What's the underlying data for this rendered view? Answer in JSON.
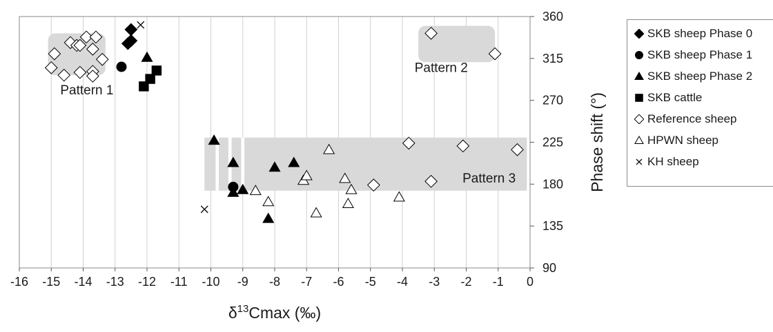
{
  "chart_data": {
    "type": "scatter",
    "xlabel_parts": [
      "δ",
      "13",
      "Cmax (‰)"
    ],
    "ylabel": "Phase shift (°)",
    "xlim": [
      -16,
      0
    ],
    "ylim": [
      90,
      360
    ],
    "x_ticks": [
      "-16",
      "-15",
      "-14",
      "-13",
      "-12",
      "-11",
      "-10",
      "-9",
      "-8",
      "-7",
      "-6",
      "-5",
      "-4",
      "-3",
      "-2",
      "-1",
      "0"
    ],
    "y_ticks": [
      "90",
      "135",
      "180",
      "225",
      "270",
      "315",
      "360"
    ],
    "y_axis_position": "right",
    "grid": "vertical",
    "legend_position": "right",
    "regions": [
      {
        "label": "Pattern 1",
        "x": [
          -15.1,
          -13.3
        ],
        "y": [
          297,
          342
        ]
      },
      {
        "label": "Pattern 2",
        "x": [
          -3.5,
          -1.1
        ],
        "y": [
          311,
          350
        ]
      },
      {
        "label": "Pattern 3",
        "x": [
          -10.2,
          -0.1
        ],
        "y": [
          173,
          230
        ]
      }
    ],
    "series": [
      {
        "name": "SKB sheep Phase 0",
        "marker": "diamond",
        "fill": "#000000",
        "points": [
          [
            -12.5,
            346
          ],
          [
            -12.5,
            334
          ],
          [
            -12.6,
            331
          ]
        ]
      },
      {
        "name": "SKB sheep Phase 1",
        "marker": "circle",
        "fill": "#000000",
        "points": [
          [
            -12.8,
            306
          ],
          [
            -9.3,
            177
          ]
        ]
      },
      {
        "name": "SKB sheep Phase 2",
        "marker": "triangle",
        "fill": "#000000",
        "points": [
          [
            -12.0,
            316
          ],
          [
            -9.9,
            227
          ],
          [
            -9.3,
            203
          ],
          [
            -9.0,
            174
          ],
          [
            -8.0,
            198
          ],
          [
            -7.4,
            203
          ],
          [
            -9.3,
            171
          ],
          [
            -8.2,
            143
          ]
        ]
      },
      {
        "name": "SKB cattle",
        "marker": "square",
        "fill": "#000000",
        "points": [
          [
            -11.7,
            302
          ],
          [
            -11.9,
            293
          ],
          [
            -12.1,
            285
          ]
        ]
      },
      {
        "name": "Reference sheep",
        "marker": "diamond",
        "fill": "#ffffff",
        "points": [
          [
            -15.0,
            305
          ],
          [
            -14.9,
            320
          ],
          [
            -14.6,
            297
          ],
          [
            -14.4,
            332
          ],
          [
            -14.2,
            329
          ],
          [
            -14.1,
            329
          ],
          [
            -14.1,
            300
          ],
          [
            -13.9,
            338
          ],
          [
            -13.7,
            325
          ],
          [
            -13.7,
            301
          ],
          [
            -13.7,
            296
          ],
          [
            -13.6,
            338
          ],
          [
            -13.4,
            314
          ],
          [
            -3.1,
            342
          ],
          [
            -1.1,
            320
          ],
          [
            -3.8,
            224
          ],
          [
            -2.1,
            221
          ],
          [
            -0.4,
            217
          ],
          [
            -4.9,
            179
          ],
          [
            -3.1,
            183
          ]
        ]
      },
      {
        "name": "HPWN sheep",
        "marker": "triangle",
        "fill": "#ffffff",
        "points": [
          [
            -8.6,
            173
          ],
          [
            -8.2,
            161
          ],
          [
            -7.1,
            184
          ],
          [
            -7.0,
            189
          ],
          [
            -6.7,
            149
          ],
          [
            -6.3,
            217
          ],
          [
            -5.8,
            186
          ],
          [
            -5.7,
            159
          ],
          [
            -5.6,
            174
          ],
          [
            -4.1,
            166
          ]
        ]
      },
      {
        "name": "KH sheep",
        "marker": "cross",
        "fill": "none",
        "points": [
          [
            -12.2,
            351
          ],
          [
            -10.2,
            153
          ]
        ]
      }
    ]
  }
}
